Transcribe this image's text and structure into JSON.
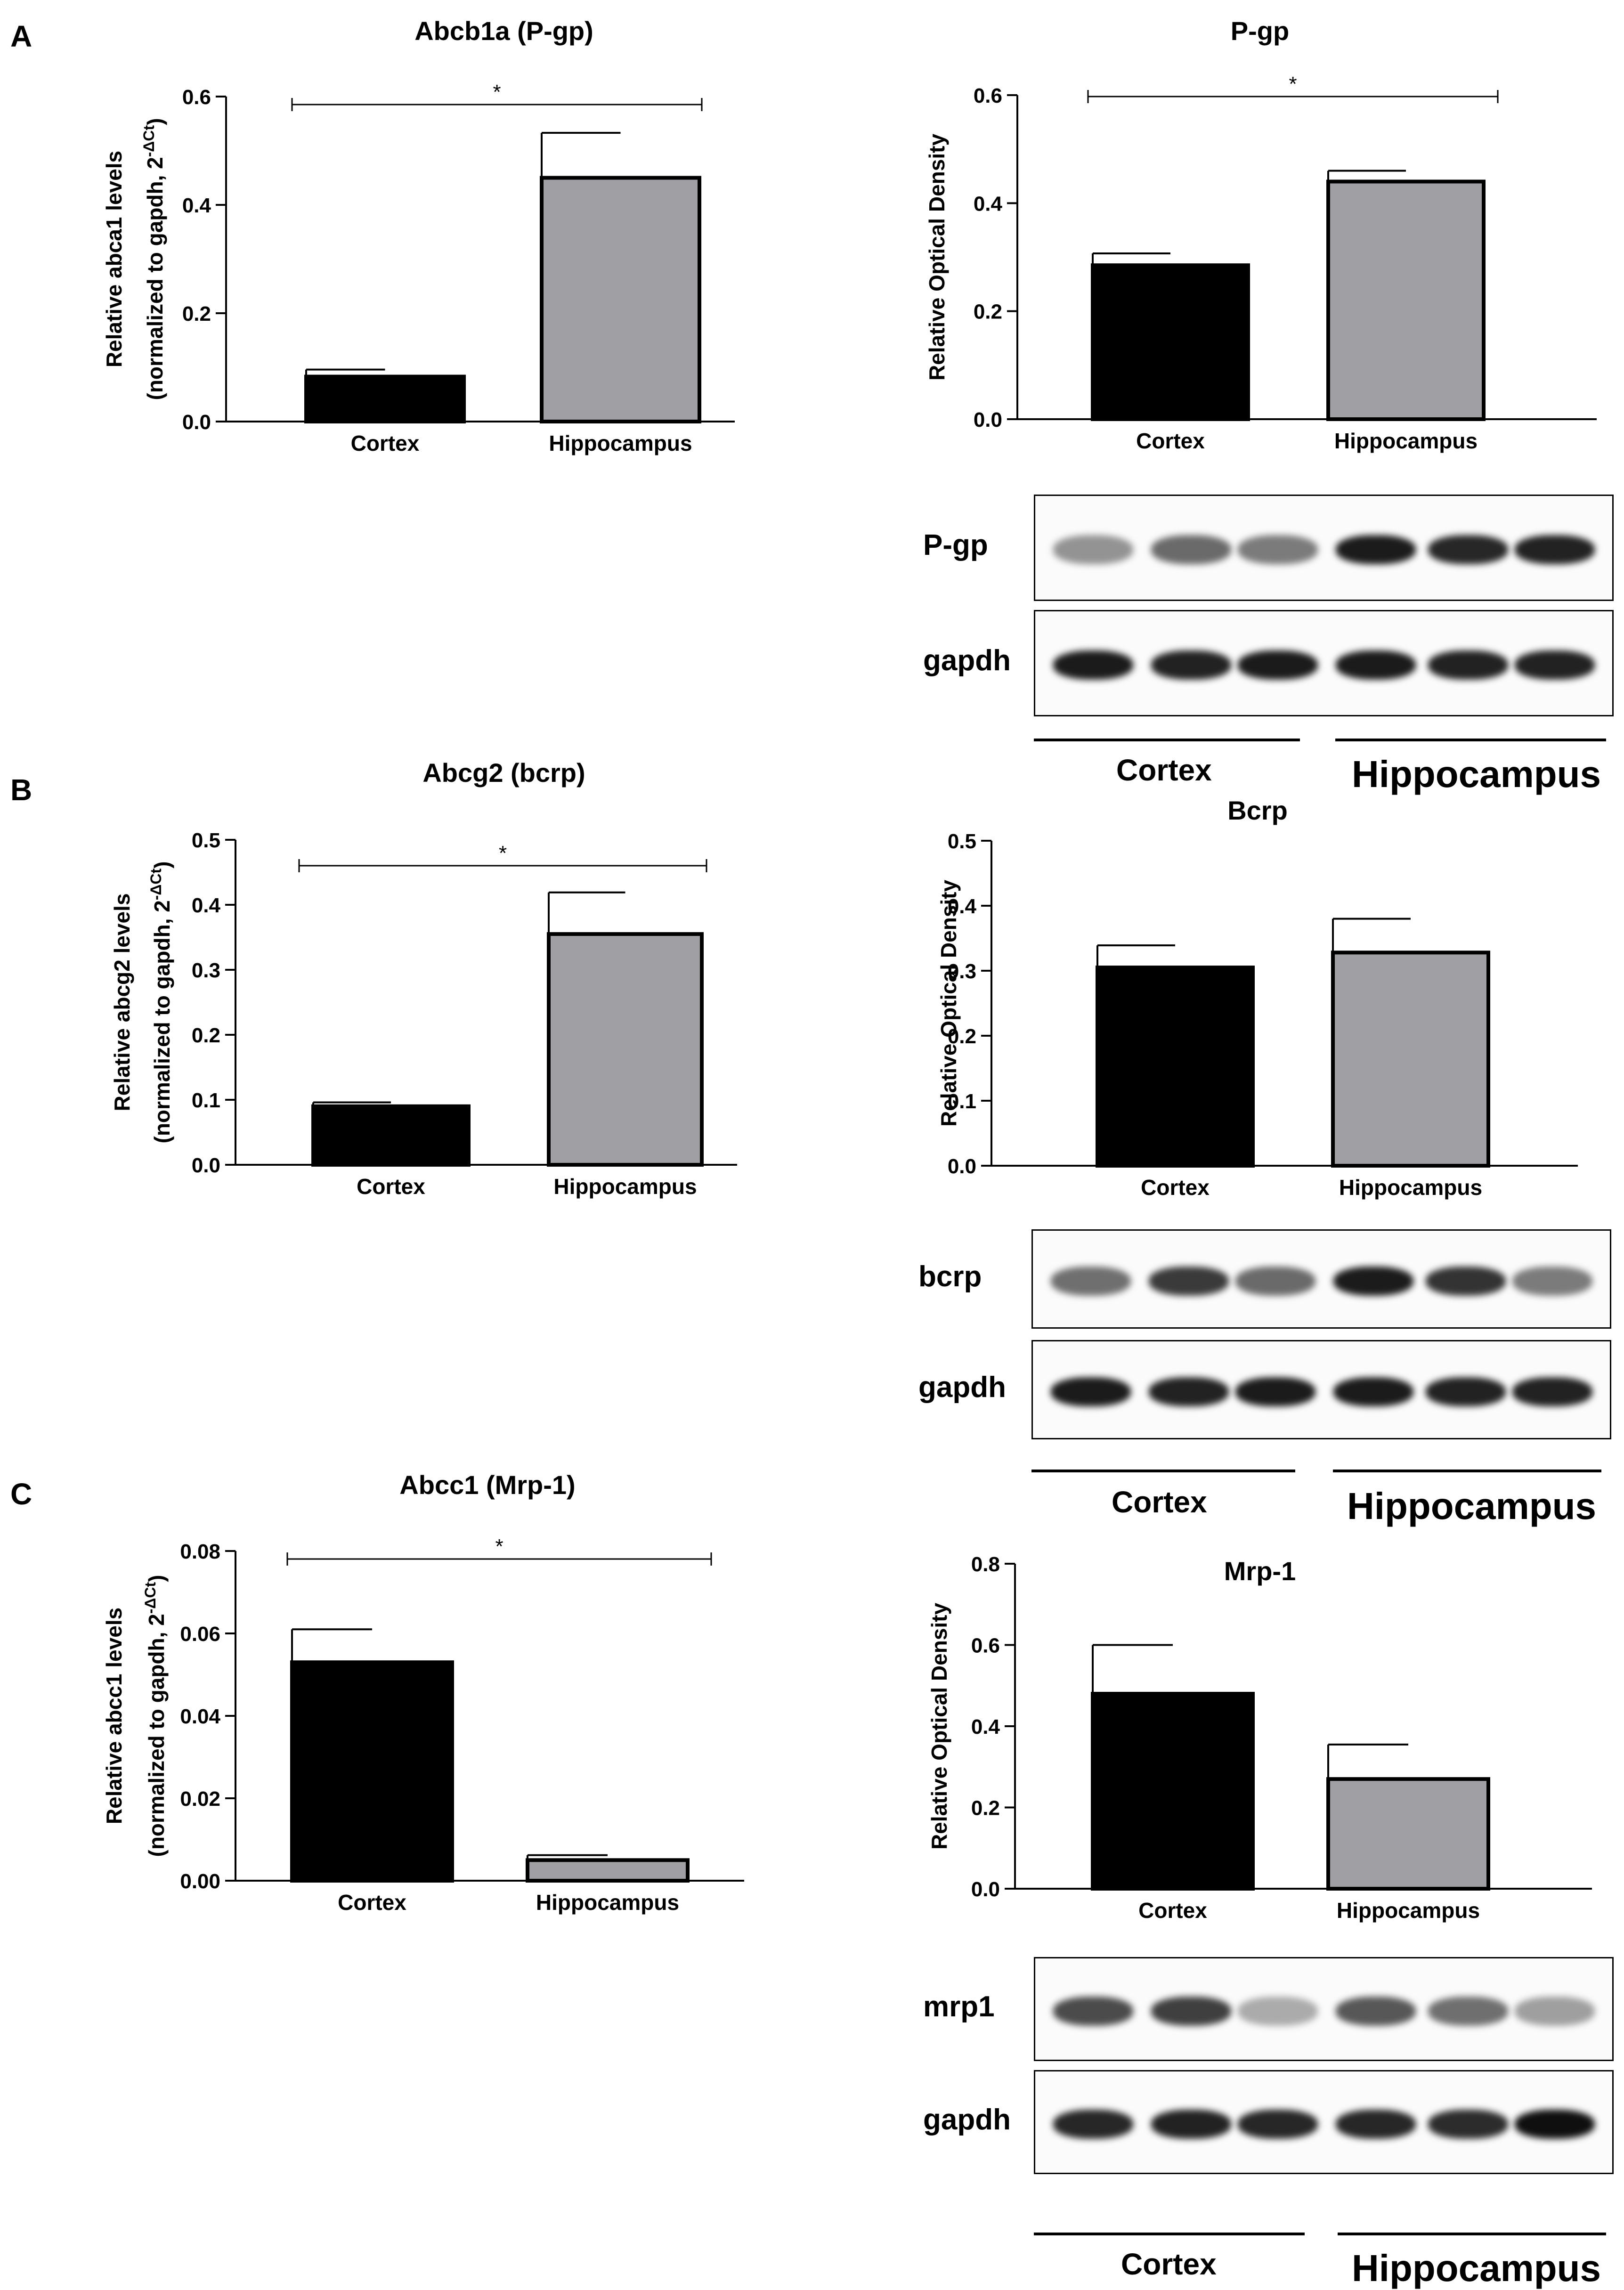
{
  "panels": {
    "A": {
      "letter": "A"
    },
    "B": {
      "letter": "B"
    },
    "C": {
      "letter": "C"
    }
  },
  "chart_data": [
    {
      "type": "bar",
      "title": "Abcb1a (P-gp)",
      "ylabel": "Relative abca1 levels",
      "ylabel2": "(normalized to gapdh, 2",
      "ylabel_sup": "-ΔCt",
      "ylabel_close": ")",
      "categories": [
        "Cortex",
        "Hippocampus"
      ],
      "values": [
        0.083,
        0.45
      ],
      "errors": [
        0.013,
        0.083
      ],
      "colors": [
        "#000000",
        "#a0a0a4"
      ],
      "ylim": [
        0,
        0.6
      ],
      "yticks": [
        "0.0",
        "0.2",
        "0.4",
        "0.6"
      ],
      "significance": "*"
    },
    {
      "type": "bar",
      "title": "P-gp",
      "ylabel": "Relative Optical Density",
      "categories": [
        "Cortex",
        "Hippocampus"
      ],
      "values": [
        0.285,
        0.44
      ],
      "errors": [
        0.022,
        0.02
      ],
      "colors": [
        "#000000",
        "#a0a0a4"
      ],
      "ylim": [
        0,
        0.6
      ],
      "yticks": [
        "0.0",
        "0.2",
        "0.4",
        "0.6"
      ],
      "significance": "*"
    },
    {
      "type": "bar",
      "title": "Abcg2 (bcrp)",
      "ylabel": "Relative abcg2 levels",
      "ylabel2": "(normalized to gapdh, 2",
      "ylabel_sup": "-ΔCt",
      "ylabel_close": ")",
      "categories": [
        "Cortex",
        "Hippocampus"
      ],
      "values": [
        0.09,
        0.355
      ],
      "errors": [
        0.006,
        0.064
      ],
      "colors": [
        "#000000",
        "#a0a0a4"
      ],
      "ylim": [
        0,
        0.5
      ],
      "yticks": [
        "0.0",
        "0.1",
        "0.2",
        "0.3",
        "0.4",
        "0.5"
      ],
      "significance": "*"
    },
    {
      "type": "bar",
      "title": "Bcrp",
      "ylabel": "Relative Optical Density",
      "categories": [
        "Cortex",
        "Hippocampus"
      ],
      "values": [
        0.305,
        0.328
      ],
      "errors": [
        0.034,
        0.052
      ],
      "colors": [
        "#000000",
        "#a0a0a4"
      ],
      "ylim": [
        0,
        0.5
      ],
      "yticks": [
        "0.0",
        "0.1",
        "0.2",
        "0.3",
        "0.4",
        "0.5"
      ],
      "significance": ""
    },
    {
      "type": "bar",
      "title": "Abcc1 (Mrp-1)",
      "ylabel": "Relative abcc1 levels",
      "ylabel2": "(normalized to gapdh, 2",
      "ylabel_sup": "-ΔCt",
      "ylabel_close": ")",
      "categories": [
        "Cortex",
        "Hippocampus"
      ],
      "values": [
        0.053,
        0.005
      ],
      "errors": [
        0.008,
        0.0012
      ],
      "colors": [
        "#000000",
        "#a0a0a4"
      ],
      "ylim": [
        0,
        0.08
      ],
      "yticks": [
        "0.00",
        "0.02",
        "0.04",
        "0.06",
        "0.08"
      ],
      "significance": "*"
    },
    {
      "type": "bar",
      "title": "Mrp-1",
      "ylabel": "Relative Optical Density",
      "categories": [
        "Cortex",
        "Hippocampus"
      ],
      "values": [
        0.48,
        0.27
      ],
      "errors": [
        0.12,
        0.085
      ],
      "colors": [
        "#000000",
        "#a0a0a4"
      ],
      "ylim": [
        0,
        0.8
      ],
      "yticks": [
        "0.0",
        "0.2",
        "0.4",
        "0.6",
        "0.8"
      ],
      "significance": ""
    }
  ],
  "blots": [
    {
      "group": "A",
      "rows": [
        {
          "label": "P-gp",
          "intensity": [
            0.45,
            0.62,
            0.55,
            0.95,
            0.9,
            0.92
          ]
        },
        {
          "label": "gapdh",
          "intensity": [
            0.95,
            0.92,
            0.95,
            0.95,
            0.92,
            0.92
          ]
        }
      ],
      "groups": [
        "Cortex",
        "Hippocampus"
      ]
    },
    {
      "group": "B",
      "rows": [
        {
          "label": "bcrp",
          "intensity": [
            0.6,
            0.82,
            0.62,
            0.95,
            0.85,
            0.55
          ]
        },
        {
          "label": "gapdh",
          "intensity": [
            0.95,
            0.92,
            0.95,
            0.95,
            0.92,
            0.92
          ]
        }
      ],
      "groups": [
        "Cortex",
        "Hippocampus"
      ]
    },
    {
      "group": "C",
      "rows": [
        {
          "label": "mrp1",
          "intensity": [
            0.75,
            0.8,
            0.35,
            0.7,
            0.6,
            0.4
          ]
        },
        {
          "label": "gapdh",
          "intensity": [
            0.9,
            0.92,
            0.9,
            0.9,
            0.88,
            1.0
          ]
        }
      ],
      "groups": [
        "Cortex",
        "Hippocampus"
      ]
    }
  ]
}
